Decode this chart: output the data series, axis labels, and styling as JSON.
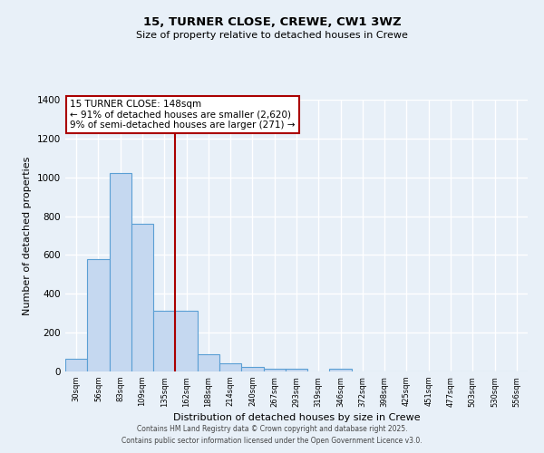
{
  "title": "15, TURNER CLOSE, CREWE, CW1 3WZ",
  "subtitle": "Size of property relative to detached houses in Crewe",
  "xlabel": "Distribution of detached houses by size in Crewe",
  "ylabel": "Number of detached properties",
  "categories": [
    "30sqm",
    "56sqm",
    "83sqm",
    "109sqm",
    "135sqm",
    "162sqm",
    "188sqm",
    "214sqm",
    "240sqm",
    "267sqm",
    "293sqm",
    "319sqm",
    "346sqm",
    "372sqm",
    "398sqm",
    "425sqm",
    "451sqm",
    "477sqm",
    "503sqm",
    "530sqm",
    "556sqm"
  ],
  "values": [
    65,
    580,
    1020,
    760,
    315,
    315,
    90,
    40,
    25,
    15,
    12,
    0,
    13,
    0,
    0,
    0,
    0,
    0,
    0,
    0,
    0
  ],
  "bar_color": "#c5d8f0",
  "bar_edge_color": "#5a9fd4",
  "background_color": "#e8f0f8",
  "grid_color": "#ffffff",
  "annotation_text_line1": "15 TURNER CLOSE: 148sqm",
  "annotation_text_line2": "← 91% of detached houses are smaller (2,620)",
  "annotation_text_line3": "9% of semi-detached houses are larger (271) →",
  "annotation_box_facecolor": "#ffffff",
  "annotation_box_edgecolor": "#aa0000",
  "vline_color": "#aa0000",
  "vline_x_index": 4.5,
  "ylim": [
    0,
    1400
  ],
  "yticks": [
    0,
    200,
    400,
    600,
    800,
    1000,
    1200,
    1400
  ],
  "footer_line1": "Contains HM Land Registry data © Crown copyright and database right 2025.",
  "footer_line2": "Contains public sector information licensed under the Open Government Licence v3.0."
}
